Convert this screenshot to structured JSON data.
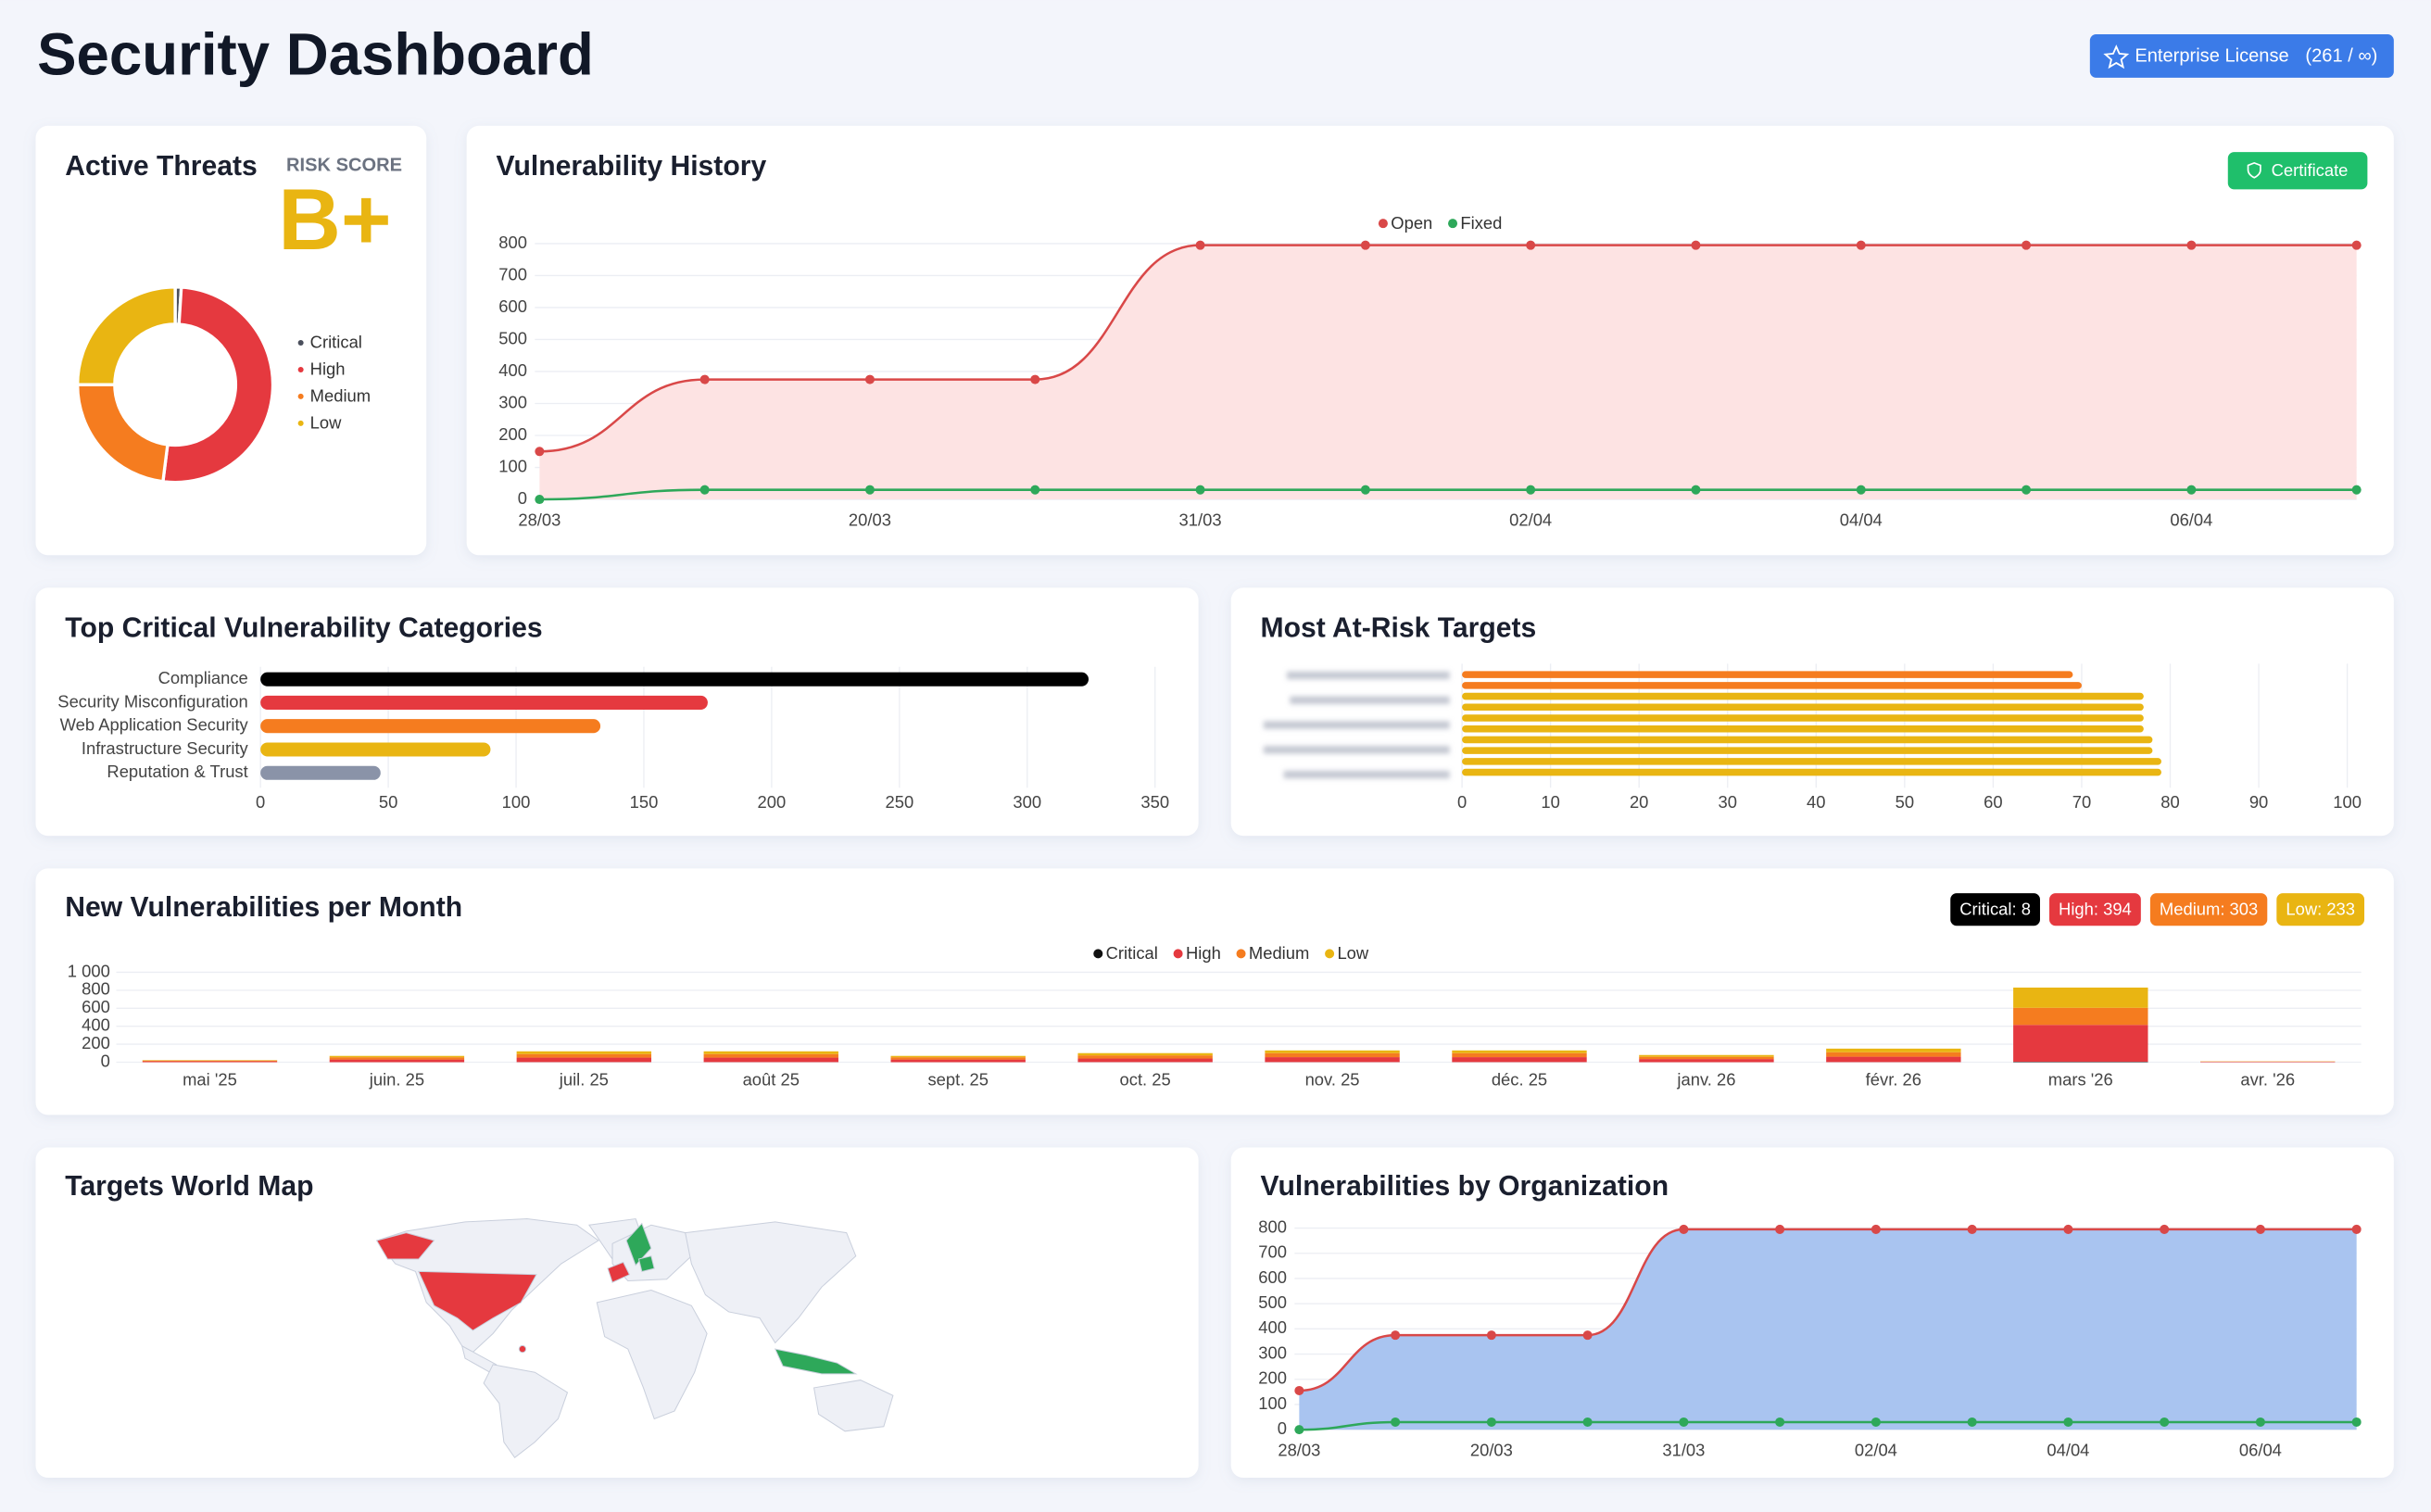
{
  "header": {
    "title": "Security Dashboard",
    "license_button": "Enterprise License",
    "license_count": "(261 / ∞)"
  },
  "active_threats": {
    "title": "Active Threats",
    "risk_label": "RISK SCORE",
    "risk_grade": "B+",
    "chart": {
      "type": "donut",
      "categories": [
        "Critical",
        "High",
        "Medium",
        "Low"
      ],
      "values": [
        1,
        51,
        23,
        25
      ],
      "colors": [
        "#4a4f5c",
        "#e5393f",
        "#f57c1f",
        "#e9b512"
      ]
    }
  },
  "vulnerability_history": {
    "title": "Vulnerability History",
    "button": "Certificate",
    "chart": {
      "type": "line",
      "legend": "top",
      "categories": [
        "28/03",
        null,
        "20/03",
        null,
        "31/03",
        null,
        "02/04",
        null,
        "04/04",
        null,
        "06/04",
        null
      ],
      "series": [
        {
          "name": "Open",
          "color": "#d94848",
          "fill": "#fde3e3",
          "values": [
            150,
            375,
            375,
            375,
            795,
            795,
            795,
            795,
            795,
            795,
            795,
            795
          ]
        },
        {
          "name": "Fixed",
          "color": "#2ea85a",
          "values": [
            0,
            30,
            30,
            30,
            30,
            30,
            30,
            30,
            30,
            30,
            30,
            30
          ]
        }
      ],
      "ylim": [
        0,
        800
      ],
      "yticks": [
        0,
        100,
        200,
        300,
        400,
        500,
        600,
        700,
        800
      ],
      "grid": true
    }
  },
  "top_categories": {
    "title": "Top Critical Vulnerability Categories",
    "chart": {
      "type": "hbar",
      "categories": [
        "Compliance",
        "Security Misconfiguration",
        "Web Application Security",
        "Infrastructure Security",
        "Reputation & Trust"
      ],
      "values": [
        324,
        175,
        133,
        90,
        47
      ],
      "colors": [
        "#000000",
        "#e5393f",
        "#f57c1f",
        "#e9b512",
        "#8a93a8"
      ],
      "xlim": [
        0,
        350
      ],
      "xticks": [
        0,
        50,
        100,
        150,
        200,
        250,
        300,
        350
      ],
      "grid": true
    }
  },
  "at_risk_targets": {
    "title": "Most At-Risk Targets",
    "chart": {
      "type": "hbar",
      "categories": [
        null,
        null,
        null,
        null,
        null,
        null,
        null,
        null,
        null,
        null
      ],
      "values": [
        69,
        70,
        77,
        77,
        77,
        77,
        78,
        78,
        79,
        79
      ],
      "colors": [
        "#f57c1f",
        "#f57c1f",
        "#e9b512",
        "#e9b512",
        "#e9b512",
        "#e9b512",
        "#e9b512",
        "#e9b512",
        "#e9b512",
        "#e9b512"
      ],
      "xlim": [
        0,
        100
      ],
      "xticks": [
        0,
        10,
        20,
        30,
        40,
        50,
        60,
        70,
        80,
        90,
        100
      ],
      "grid": true
    }
  },
  "monthly": {
    "title": "New Vulnerabilities per Month",
    "badges": [
      {
        "text": "Critical: 8",
        "color": "#000000"
      },
      {
        "text": "High: 394",
        "color": "#e5393f"
      },
      {
        "text": "Medium: 303",
        "color": "#f57c1f"
      },
      {
        "text": "Low: 233",
        "color": "#e9b512"
      }
    ],
    "chart": {
      "type": "stacked_bar",
      "legend": "top",
      "categories": [
        "mai '25",
        "juin. 25",
        "juil. 25",
        "août 25",
        "sept. 25",
        "oct. 25",
        "nov. 25",
        "déc. 25",
        "janv. 26",
        "févr. 26",
        "mars '26",
        "avr. '26"
      ],
      "series": [
        {
          "name": "Critical",
          "color": "#111111",
          "values": [
            0,
            0,
            1,
            1,
            0,
            1,
            1,
            1,
            0,
            1,
            5,
            0
          ]
        },
        {
          "name": "High",
          "color": "#e5393f",
          "values": [
            10,
            30,
            50,
            50,
            30,
            40,
            55,
            55,
            35,
            60,
            410,
            5
          ]
        },
        {
          "name": "Medium",
          "color": "#f57c1f",
          "values": [
            8,
            25,
            40,
            40,
            25,
            35,
            45,
            45,
            25,
            50,
            190,
            3
          ]
        },
        {
          "name": "Low",
          "color": "#e9b512",
          "values": [
            5,
            15,
            30,
            30,
            15,
            25,
            30,
            30,
            20,
            40,
            225,
            2
          ]
        }
      ],
      "ylim": [
        0,
        1000
      ],
      "yticks": [
        0,
        200,
        400,
        600,
        800,
        {
          "value": 1000,
          "label": "1 000"
        }
      ],
      "grid": true
    }
  },
  "world_map": {
    "title": "Targets World Map"
  },
  "organizations": {
    "title": "Vulnerabilities by Organization",
    "chart": {
      "type": "line",
      "categories": [
        "28/03",
        null,
        "20/03",
        null,
        "31/03",
        null,
        "02/04",
        null,
        "04/04",
        null,
        "06/04",
        null
      ],
      "series": [
        {
          "name": "Open",
          "color": "#d94848",
          "fill": "#a9c4f0",
          "values": [
            155,
            375,
            375,
            375,
            795,
            795,
            795,
            795,
            795,
            795,
            795,
            795
          ]
        },
        {
          "name": "Fixed",
          "color": "#2ea85a",
          "values": [
            0,
            30,
            30,
            30,
            30,
            30,
            30,
            30,
            30,
            30,
            30,
            30
          ]
        }
      ],
      "ylim": [
        0,
        800
      ],
      "yticks": [
        0,
        100,
        200,
        300,
        400,
        500,
        600,
        700,
        800
      ],
      "grid": true
    }
  }
}
